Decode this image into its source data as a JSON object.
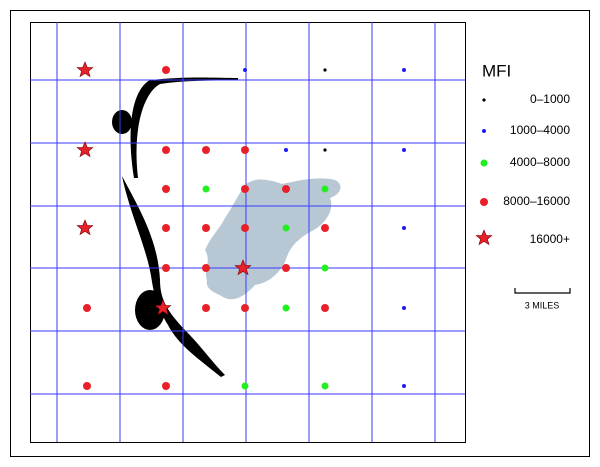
{
  "legend": {
    "title": "MFI",
    "items": [
      "0–1000",
      "1000–4000",
      "4000–8000",
      "8000–16000",
      "16000+"
    ]
  },
  "scale_bar": "3 MILES"
}
